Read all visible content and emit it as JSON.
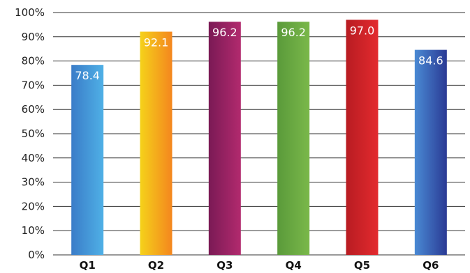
{
  "chart_data": {
    "type": "bar",
    "title": "",
    "xlabel": "",
    "ylabel": "",
    "categories": [
      "Q1",
      "Q2",
      "Q3",
      "Q4",
      "Q5",
      "Q6"
    ],
    "values": [
      78.4,
      92.1,
      96.2,
      96.2,
      97.0,
      84.6
    ],
    "data_labels": [
      "78.4",
      "92.1",
      "96.2",
      "96.2",
      "97.0",
      "84.6"
    ],
    "yticks": [
      "0%",
      "10%",
      "20%",
      "30%",
      "40%",
      "50%",
      "60%",
      "70%",
      "80%",
      "90%",
      "100%"
    ],
    "ylim": [
      0,
      100
    ],
    "grid": true,
    "legend": "none",
    "bar_colors": [
      [
        "#3a7cc8",
        "#4fb0e6"
      ],
      [
        "#f5d21a",
        "#f4861e"
      ],
      [
        "#7a1a55",
        "#b22a6e"
      ],
      [
        "#5a9a3a",
        "#7ab84a"
      ],
      [
        "#b81c22",
        "#e32a2e"
      ],
      [
        "#4a8ad4",
        "#2a3a94"
      ]
    ]
  }
}
